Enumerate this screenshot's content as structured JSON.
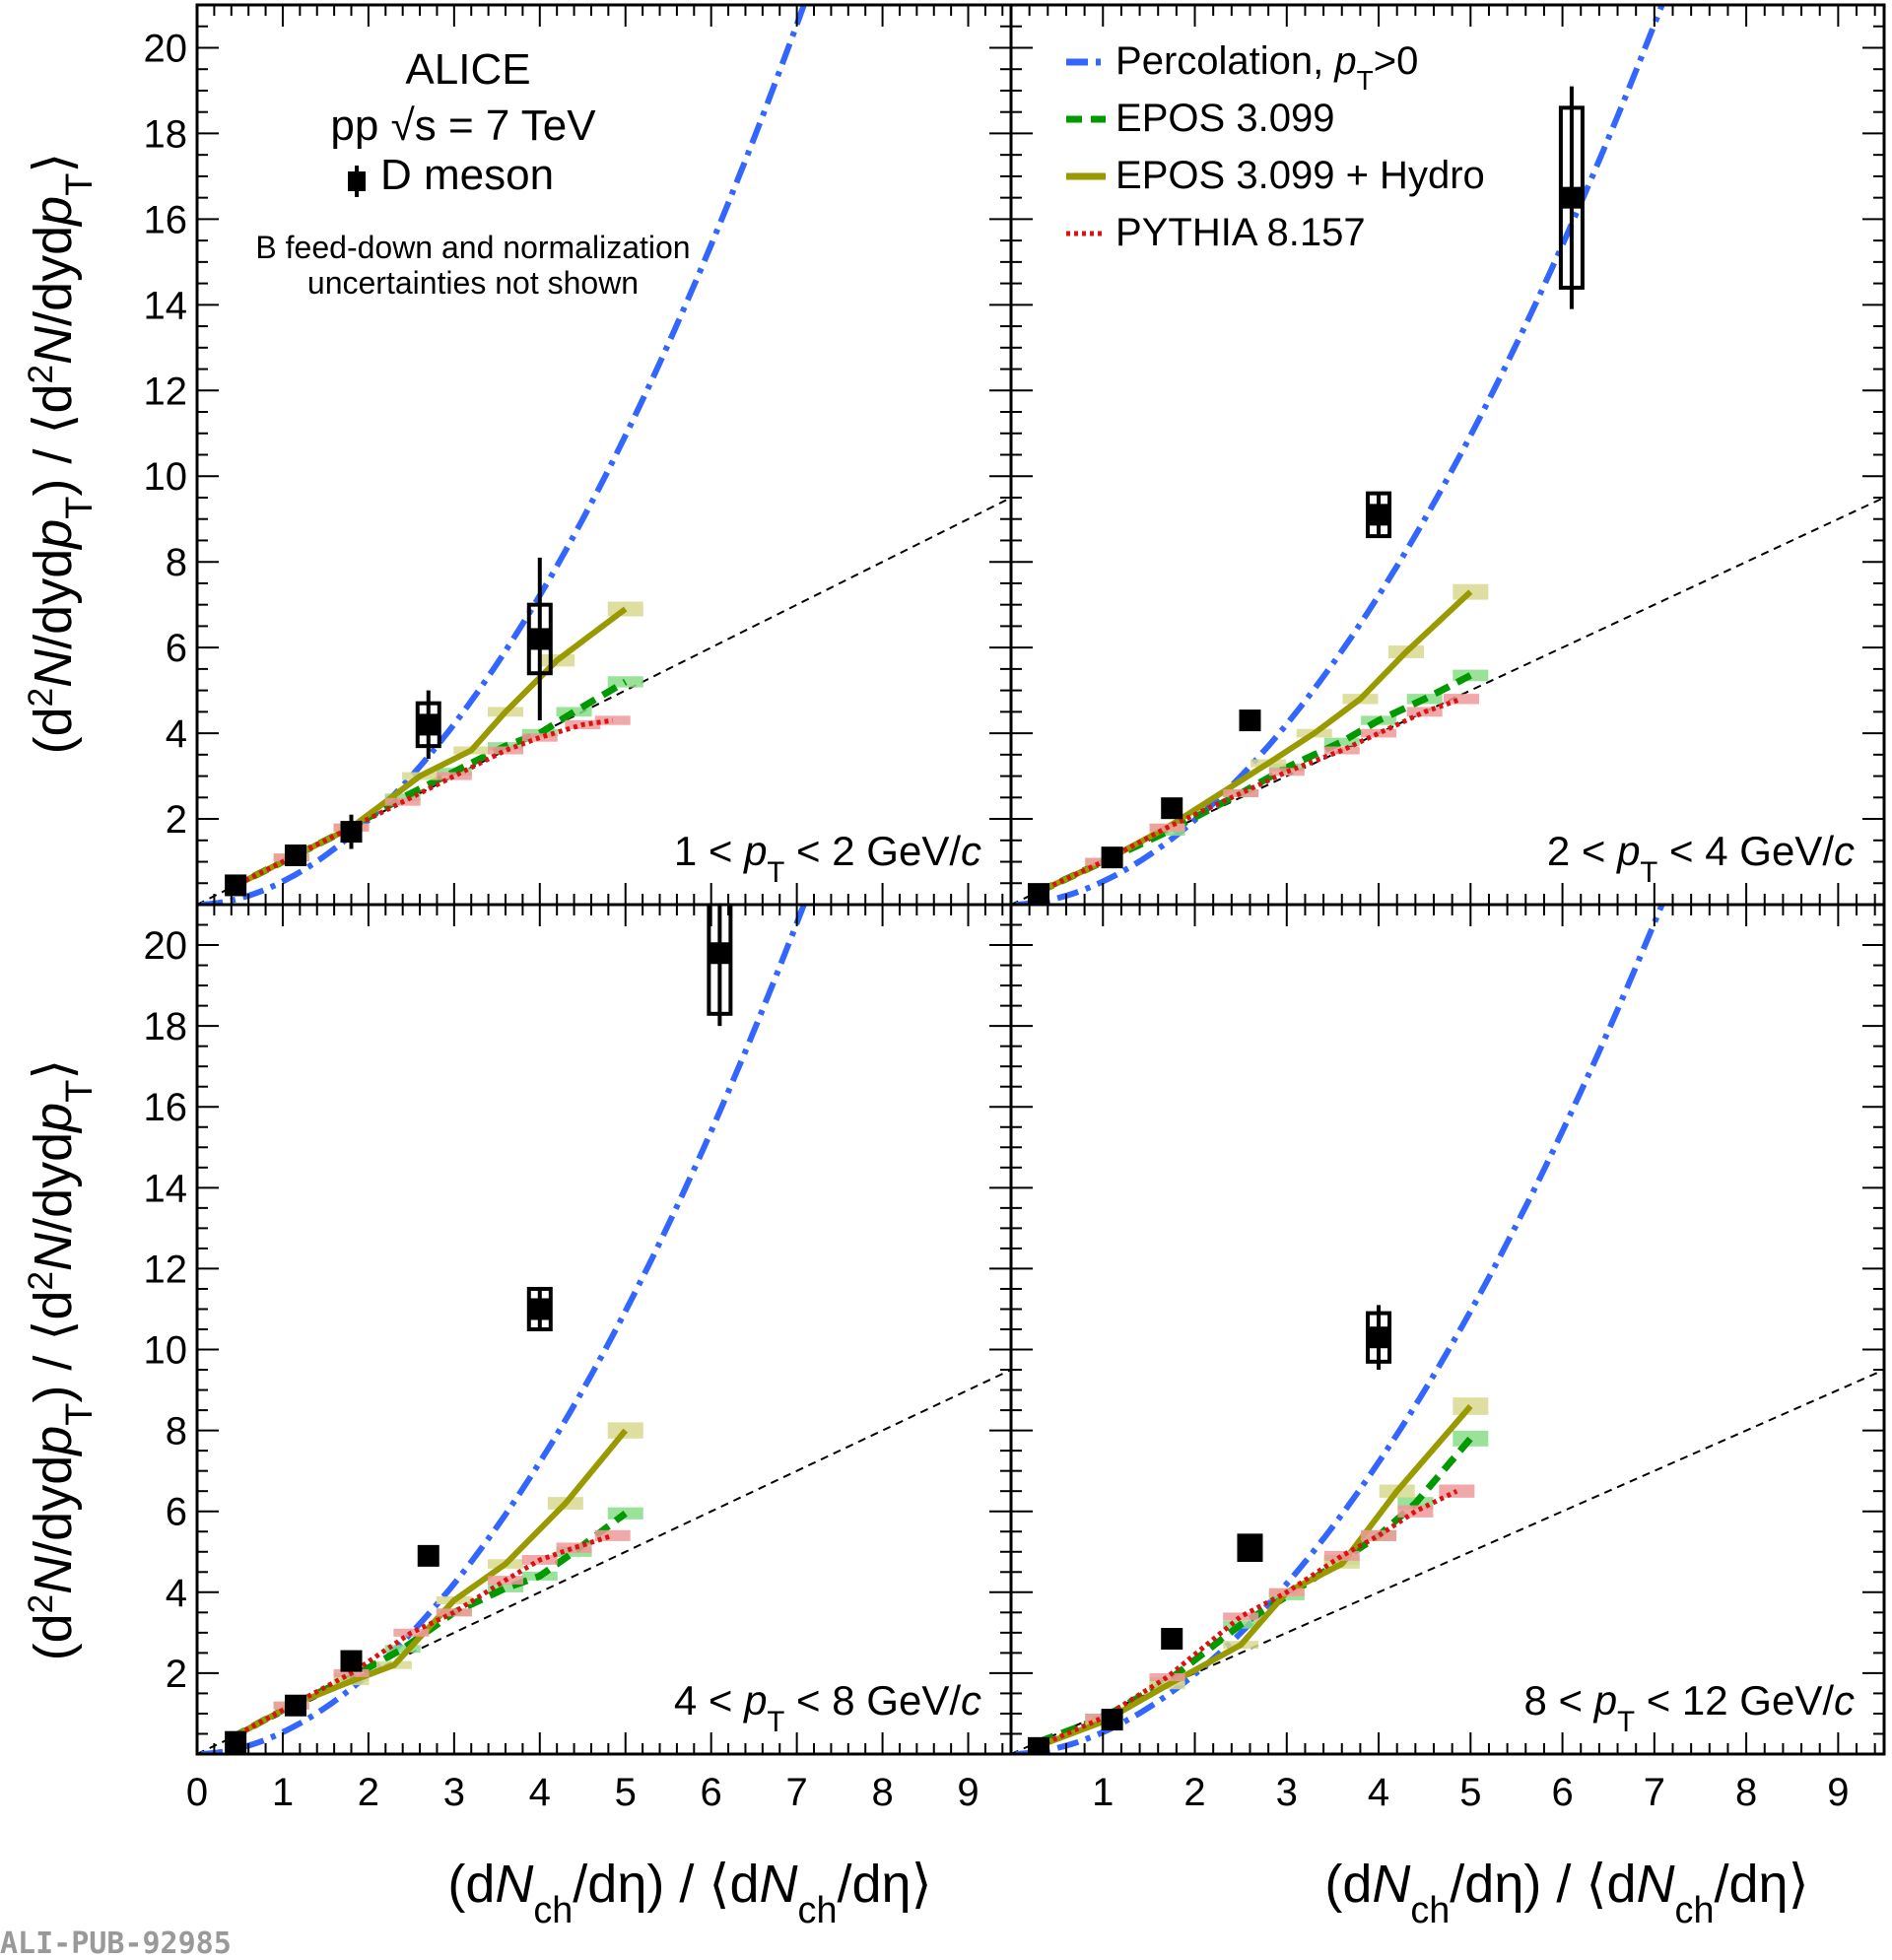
{
  "figure": {
    "alice": "ALICE",
    "system": "pp  √s = 7 TeV",
    "marker_label": "D meson",
    "note_line1": "B feed-down and normalization",
    "note_line2": "uncertainties not shown",
    "footer": "ALI-PUB-92985",
    "xlabel": "(dN_ch/dη) / ⟨dN_ch/dη⟩",
    "ylabel": "(d²N/dydp_T) / ⟨d²N/dydp_T⟩"
  },
  "legend": [
    {
      "key": "percolation",
      "label": "Percolation, p_T>0",
      "color": "#3366ff",
      "dash": "dashdot"
    },
    {
      "key": "epos",
      "label": "EPOS 3.099",
      "color": "#009900",
      "dash": "dashed"
    },
    {
      "key": "hydro",
      "label": "EPOS 3.099 + Hydro",
      "color": "#999900",
      "dash": "solid"
    },
    {
      "key": "pythia",
      "label": "PYTHIA 8.157",
      "color": "#dd1111",
      "dash": "dotted"
    }
  ],
  "colors": {
    "percolation": "#3366ff",
    "epos": "#009900",
    "epos_box": "#88dd88",
    "hydro": "#999900",
    "hydro_box": "#d8d890",
    "pythia": "#dd1111",
    "pythia_box": "#ee9999",
    "data": "#000000"
  },
  "chart_data": [
    {
      "type": "scatter",
      "panel": "top-left",
      "pt_range": "1 < p_T < 2 GeV/c",
      "xlim": [
        0,
        9.5
      ],
      "ylim": [
        0,
        21
      ],
      "xticks": [
        0,
        1,
        2,
        3,
        4,
        5,
        6,
        7,
        8,
        9
      ],
      "yticks": [
        2,
        4,
        6,
        8,
        10,
        12,
        14,
        16,
        18,
        20
      ],
      "diagonal": [
        [
          0,
          0
        ],
        [
          9.5,
          9.5
        ]
      ],
      "data": [
        {
          "x": 0.45,
          "y": 0.45,
          "stat": 0.05,
          "syst": 0.1
        },
        {
          "x": 1.15,
          "y": 1.15,
          "stat": 0.08,
          "syst": 0.12
        },
        {
          "x": 1.8,
          "y": 1.7,
          "stat": 0.4,
          "syst": 0.25
        },
        {
          "x": 2.7,
          "y": 4.2,
          "stat": 0.8,
          "syst": 0.5
        },
        {
          "x": 4.0,
          "y": 6.2,
          "stat": 1.9,
          "syst": 0.8
        }
      ],
      "percolation": {
        "a": 0.54,
        "b": 1.87,
        "xmax": 9.5
      },
      "epos": [
        [
          0.4,
          0.4
        ],
        [
          1.1,
          1.1
        ],
        [
          1.8,
          1.8
        ],
        [
          2.4,
          2.5
        ],
        [
          3.0,
          3.1
        ],
        [
          3.6,
          3.7
        ],
        [
          4.0,
          4.0
        ],
        [
          4.4,
          4.5
        ],
        [
          5.0,
          5.2
        ]
      ],
      "hydro": [
        [
          0.4,
          0.4
        ],
        [
          1.1,
          1.1
        ],
        [
          1.8,
          1.8
        ],
        [
          2.6,
          3.0
        ],
        [
          3.2,
          3.6
        ],
        [
          3.6,
          4.5
        ],
        [
          4.2,
          5.7
        ],
        [
          5.0,
          6.9
        ]
      ],
      "pythia": [
        [
          0.4,
          0.4
        ],
        [
          1.1,
          1.1
        ],
        [
          1.8,
          1.8
        ],
        [
          2.4,
          2.4
        ],
        [
          3.0,
          3.0
        ],
        [
          3.6,
          3.6
        ],
        [
          4.0,
          3.9
        ],
        [
          4.5,
          4.2
        ],
        [
          4.85,
          4.3
        ]
      ]
    },
    {
      "type": "scatter",
      "panel": "top-right",
      "pt_range": "2 < p_T < 4 GeV/c",
      "xlim": [
        0,
        9.5
      ],
      "ylim": [
        0,
        21
      ],
      "xticks": [
        0,
        1,
        2,
        3,
        4,
        5,
        6,
        7,
        8,
        9
      ],
      "yticks": [
        2,
        4,
        6,
        8,
        10,
        12,
        14,
        16,
        18,
        20
      ],
      "diagonal": [
        [
          0,
          0
        ],
        [
          9.5,
          9.5
        ]
      ],
      "data": [
        {
          "x": 0.3,
          "y": 0.25,
          "stat": 0.05,
          "syst": 0.1
        },
        {
          "x": 1.1,
          "y": 1.1,
          "stat": 0.08,
          "syst": 0.12
        },
        {
          "x": 1.75,
          "y": 2.25,
          "stat": 0.1,
          "syst": 0.15
        },
        {
          "x": 2.6,
          "y": 4.3,
          "stat": 0.12,
          "syst": 0.2
        },
        {
          "x": 4.0,
          "y": 9.1,
          "stat": 0.5,
          "syst": 0.5
        },
        {
          "x": 6.1,
          "y": 16.5,
          "stat": 2.6,
          "syst": 2.1
        }
      ],
      "percolation": {
        "a": 0.54,
        "b": 1.87,
        "xmax": 9.5
      },
      "epos": [
        [
          0.3,
          0.3
        ],
        [
          1.0,
          1.0
        ],
        [
          1.7,
          1.7
        ],
        [
          2.5,
          2.6
        ],
        [
          3.0,
          3.2
        ],
        [
          3.6,
          3.8
        ],
        [
          4.0,
          4.3
        ],
        [
          4.5,
          4.8
        ],
        [
          5.0,
          5.35
        ]
      ],
      "hydro": [
        [
          0.3,
          0.3
        ],
        [
          1.0,
          1.0
        ],
        [
          1.7,
          1.8
        ],
        [
          2.8,
          3.3
        ],
        [
          3.3,
          4.0
        ],
        [
          3.8,
          4.8
        ],
        [
          4.3,
          5.9
        ],
        [
          5.0,
          7.3
        ]
      ],
      "pythia": [
        [
          0.3,
          0.3
        ],
        [
          1.0,
          1.0
        ],
        [
          1.7,
          1.8
        ],
        [
          2.5,
          2.6
        ],
        [
          3.0,
          3.1
        ],
        [
          3.6,
          3.6
        ],
        [
          4.0,
          4.0
        ],
        [
          4.5,
          4.5
        ],
        [
          4.9,
          4.8
        ]
      ]
    },
    {
      "type": "scatter",
      "panel": "bottom-left",
      "pt_range": "4 < p_T < 8 GeV/c",
      "xlim": [
        0,
        9.5
      ],
      "ylim": [
        0,
        21
      ],
      "xticks": [
        0,
        1,
        2,
        3,
        4,
        5,
        6,
        7,
        8,
        9
      ],
      "yticks": [
        2,
        4,
        6,
        8,
        10,
        12,
        14,
        16,
        18,
        20
      ],
      "diagonal": [
        [
          0,
          0
        ],
        [
          9.5,
          9.5
        ]
      ],
      "data": [
        {
          "x": 0.45,
          "y": 0.3,
          "stat": 0.05,
          "syst": 0.1
        },
        {
          "x": 1.15,
          "y": 1.2,
          "stat": 0.08,
          "syst": 0.12
        },
        {
          "x": 1.8,
          "y": 2.3,
          "stat": 0.12,
          "syst": 0.15
        },
        {
          "x": 2.7,
          "y": 4.9,
          "stat": 0.2,
          "syst": 0.25
        },
        {
          "x": 4.0,
          "y": 11.0,
          "stat": 0.5,
          "syst": 0.5
        },
        {
          "x": 6.1,
          "y": 19.8,
          "stat": 1.8,
          "syst": 1.5
        }
      ],
      "percolation": {
        "a": 0.54,
        "b": 1.87,
        "xmax": 9.5
      },
      "epos": [
        [
          0.4,
          0.4
        ],
        [
          1.1,
          1.2
        ],
        [
          1.8,
          1.9
        ],
        [
          2.4,
          2.6
        ],
        [
          3.0,
          3.5
        ],
        [
          3.6,
          4.1
        ],
        [
          4.0,
          4.4
        ],
        [
          4.4,
          5.0
        ],
        [
          5.0,
          5.95
        ]
      ],
      "hydro": [
        [
          0.4,
          0.4
        ],
        [
          1.1,
          1.2
        ],
        [
          1.8,
          1.8
        ],
        [
          2.3,
          2.2
        ],
        [
          3.0,
          3.8
        ],
        [
          3.6,
          4.7
        ],
        [
          4.3,
          6.2
        ],
        [
          5.0,
          8.0
        ]
      ],
      "pythia": [
        [
          0.4,
          0.4
        ],
        [
          1.1,
          1.2
        ],
        [
          1.8,
          2.0
        ],
        [
          2.5,
          3.0
        ],
        [
          3.0,
          3.5
        ],
        [
          3.6,
          4.3
        ],
        [
          4.0,
          4.8
        ],
        [
          4.4,
          5.1
        ],
        [
          4.85,
          5.4
        ]
      ]
    },
    {
      "type": "scatter",
      "panel": "bottom-right",
      "pt_range": "8 < p_T < 12 GeV/c",
      "xlim": [
        0,
        9.5
      ],
      "ylim": [
        0,
        21
      ],
      "xticks": [
        0,
        1,
        2,
        3,
        4,
        5,
        6,
        7,
        8,
        9
      ],
      "yticks": [
        2,
        4,
        6,
        8,
        10,
        12,
        14,
        16,
        18,
        20
      ],
      "diagonal": [
        [
          0,
          0
        ],
        [
          9.5,
          9.5
        ]
      ],
      "data": [
        {
          "x": 0.3,
          "y": 0.15,
          "stat": 0.05,
          "syst": 0.1
        },
        {
          "x": 1.1,
          "y": 0.85,
          "stat": 0.08,
          "syst": 0.12
        },
        {
          "x": 1.75,
          "y": 2.85,
          "stat": 0.1,
          "syst": 0.15
        },
        {
          "x": 2.6,
          "y": 5.1,
          "stat": 0.3,
          "syst": 0.3
        },
        {
          "x": 4.0,
          "y": 10.3,
          "stat": 0.8,
          "syst": 0.6
        }
      ],
      "percolation": {
        "a": 0.54,
        "b": 1.87,
        "xmax": 9.5
      },
      "epos": [
        [
          0.3,
          0.3
        ],
        [
          1.0,
          0.9
        ],
        [
          1.7,
          1.8
        ],
        [
          2.5,
          3.2
        ],
        [
          3.0,
          3.9
        ],
        [
          3.6,
          4.8
        ],
        [
          4.0,
          5.4
        ],
        [
          4.4,
          6.2
        ],
        [
          5.0,
          7.8
        ]
      ],
      "hydro": [
        [
          0.3,
          0.2
        ],
        [
          1.0,
          0.8
        ],
        [
          1.7,
          1.7
        ],
        [
          2.5,
          2.7
        ],
        [
          3.0,
          4.0
        ],
        [
          3.6,
          4.7
        ],
        [
          4.2,
          6.5
        ],
        [
          5.0,
          8.6
        ]
      ],
      "pythia": [
        [
          0.3,
          0.2
        ],
        [
          1.0,
          0.9
        ],
        [
          1.7,
          1.9
        ],
        [
          2.5,
          3.4
        ],
        [
          3.0,
          4.0
        ],
        [
          3.6,
          4.9
        ],
        [
          4.0,
          5.4
        ],
        [
          4.4,
          6.0
        ],
        [
          4.85,
          6.5
        ]
      ]
    }
  ]
}
